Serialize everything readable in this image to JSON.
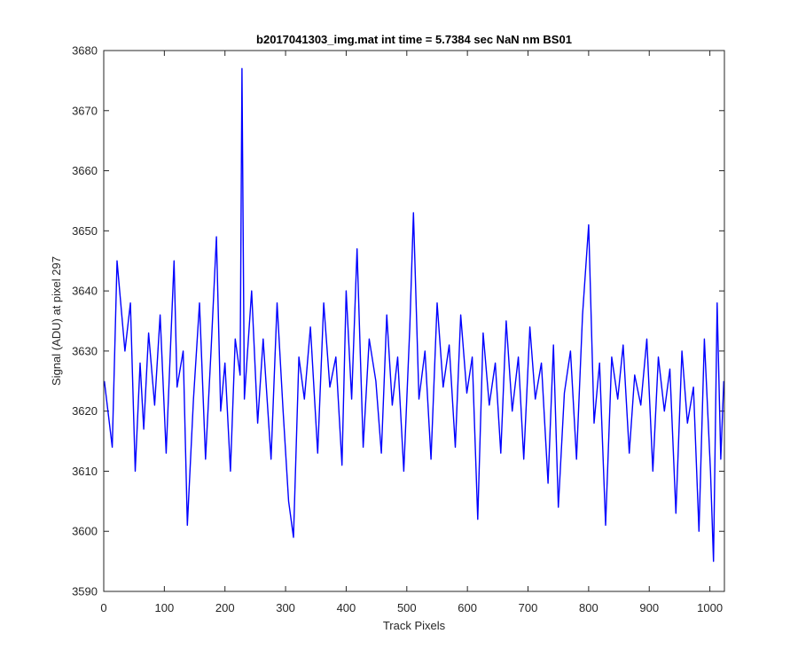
{
  "chart_data": {
    "type": "line",
    "title": "b2017041303_img.mat int time = 5.7384 sec  NaN nm BS01",
    "xlabel": "Track Pixels",
    "ylabel": "Signal (ADU) at pixel 297",
    "xlim": [
      0,
      1024
    ],
    "ylim": [
      3590,
      3680
    ],
    "xticks": [
      0,
      100,
      200,
      300,
      400,
      500,
      600,
      700,
      800,
      900,
      1000
    ],
    "yticks": [
      3590,
      3600,
      3610,
      3620,
      3630,
      3640,
      3650,
      3660,
      3670,
      3680
    ],
    "grid": false,
    "legend": "none",
    "line_color": "#0000ff",
    "series": [
      {
        "x": [
          1,
          14,
          22,
          35,
          44,
          52,
          60,
          66,
          74,
          84,
          93,
          103,
          116,
          121,
          131,
          138,
          148,
          158,
          168,
          177,
          186,
          193,
          200,
          209,
          217,
          225,
          228,
          232,
          244,
          254,
          263,
          276,
          286,
          296,
          305,
          313,
          322,
          331,
          341,
          353,
          363,
          373,
          383,
          393,
          400,
          409,
          418,
          428,
          438,
          449,
          458,
          467,
          476,
          485,
          495,
          505,
          511,
          520,
          530,
          540,
          550,
          560,
          570,
          580,
          589,
          599,
          608,
          617,
          626,
          636,
          646,
          655,
          664,
          674,
          684,
          693,
          703,
          712,
          722,
          733,
          742,
          750,
          760,
          770,
          780,
          790,
          800,
          809,
          818,
          828,
          838,
          848,
          857,
          867,
          876,
          886,
          896,
          906,
          915,
          925,
          934,
          944,
          954,
          963,
          973,
          982,
          991,
          1001,
          1006,
          1012,
          1018,
          1023
        ],
        "y": [
          3625,
          3614,
          3645,
          3630,
          3638,
          3610,
          3628,
          3617,
          3633,
          3621,
          3636,
          3613,
          3645,
          3624,
          3630,
          3601,
          3622,
          3638,
          3612,
          3630,
          3649,
          3620,
          3628,
          3610,
          3632,
          3626,
          3677,
          3622,
          3640,
          3618,
          3632,
          3612,
          3638,
          3620,
          3605,
          3599,
          3629,
          3622,
          3634,
          3613,
          3638,
          3624,
          3629,
          3611,
          3640,
          3622,
          3647,
          3614,
          3632,
          3625,
          3613,
          3636,
          3621,
          3629,
          3610,
          3634,
          3653,
          3622,
          3630,
          3612,
          3638,
          3624,
          3631,
          3614,
          3636,
          3623,
          3629,
          3602,
          3633,
          3621,
          3628,
          3613,
          3635,
          3620,
          3629,
          3612,
          3634,
          3622,
          3628,
          3608,
          3631,
          3604,
          3623,
          3630,
          3612,
          3636,
          3651,
          3618,
          3628,
          3601,
          3629,
          3622,
          3631,
          3613,
          3626,
          3621,
          3632,
          3610,
          3629,
          3620,
          3627,
          3603,
          3630,
          3618,
          3624,
          3600,
          3632,
          3610,
          3595,
          3638,
          3612,
          3625
        ]
      }
    ]
  }
}
